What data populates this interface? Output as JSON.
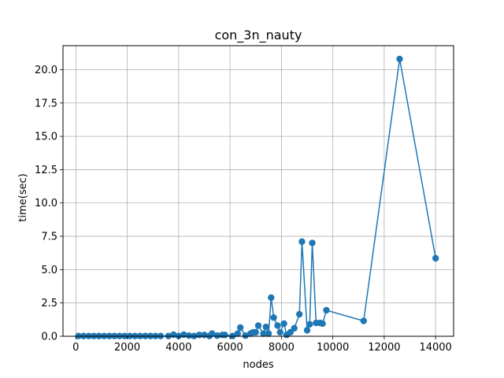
{
  "chart_data": {
    "type": "line",
    "title": "con_3n_nauty",
    "xlabel": "nodes",
    "ylabel": "time(sec)",
    "xlim": [
      -500,
      14700
    ],
    "ylim": [
      0,
      21.8
    ],
    "grid": true,
    "color": "#1f77b4",
    "xticks": [
      0,
      2000,
      4000,
      6000,
      8000,
      10000,
      12000,
      14000
    ],
    "xtick_labels": [
      "0",
      "2000",
      "4000",
      "6000",
      "8000",
      "10000",
      "12000",
      "14000"
    ],
    "yticks": [
      0,
      2.5,
      5,
      7.5,
      10,
      12.5,
      15,
      17.5,
      20
    ],
    "ytick_labels": [
      "0.0",
      "2.5",
      "5.0",
      "7.5",
      "10.0",
      "12.5",
      "15.0",
      "17.5",
      "20.0"
    ],
    "series": [
      {
        "x": [
          100,
          300,
          500,
          700,
          900,
          1100,
          1300,
          1500,
          1700,
          1900,
          2100,
          2300,
          2500,
          2700,
          2900,
          3100,
          3300,
          3600,
          3800,
          4000,
          4200,
          4400,
          4600,
          4800,
          5000,
          5200,
          5300,
          5500,
          5700,
          5800,
          6100,
          6300,
          6400,
          6600,
          6800,
          6900,
          7000,
          7100,
          7300,
          7400,
          7500,
          7600,
          7700,
          7850,
          7950,
          8100,
          8200,
          8350,
          8500,
          8700,
          8800,
          9000,
          9100,
          9200,
          9350,
          9500,
          9600,
          9750,
          11200,
          12600,
          14000
        ],
        "y": [
          0.02,
          0.02,
          0.02,
          0.02,
          0.02,
          0.02,
          0.02,
          0.02,
          0.02,
          0.02,
          0.02,
          0.02,
          0.02,
          0.02,
          0.02,
          0.02,
          0.02,
          0.02,
          0.12,
          0.02,
          0.12,
          0.05,
          0.02,
          0.1,
          0.1,
          0.02,
          0.2,
          0.05,
          0.1,
          0.1,
          0.02,
          0.2,
          0.65,
          0.05,
          0.2,
          0.3,
          0.3,
          0.8,
          0.2,
          0.7,
          0.2,
          2.9,
          1.4,
          0.8,
          0.3,
          0.95,
          0.1,
          0.3,
          0.6,
          1.65,
          7.1,
          0.45,
          0.9,
          7.0,
          1.0,
          1.0,
          0.95,
          1.95,
          1.15,
          20.8,
          5.85
        ]
      }
    ]
  }
}
